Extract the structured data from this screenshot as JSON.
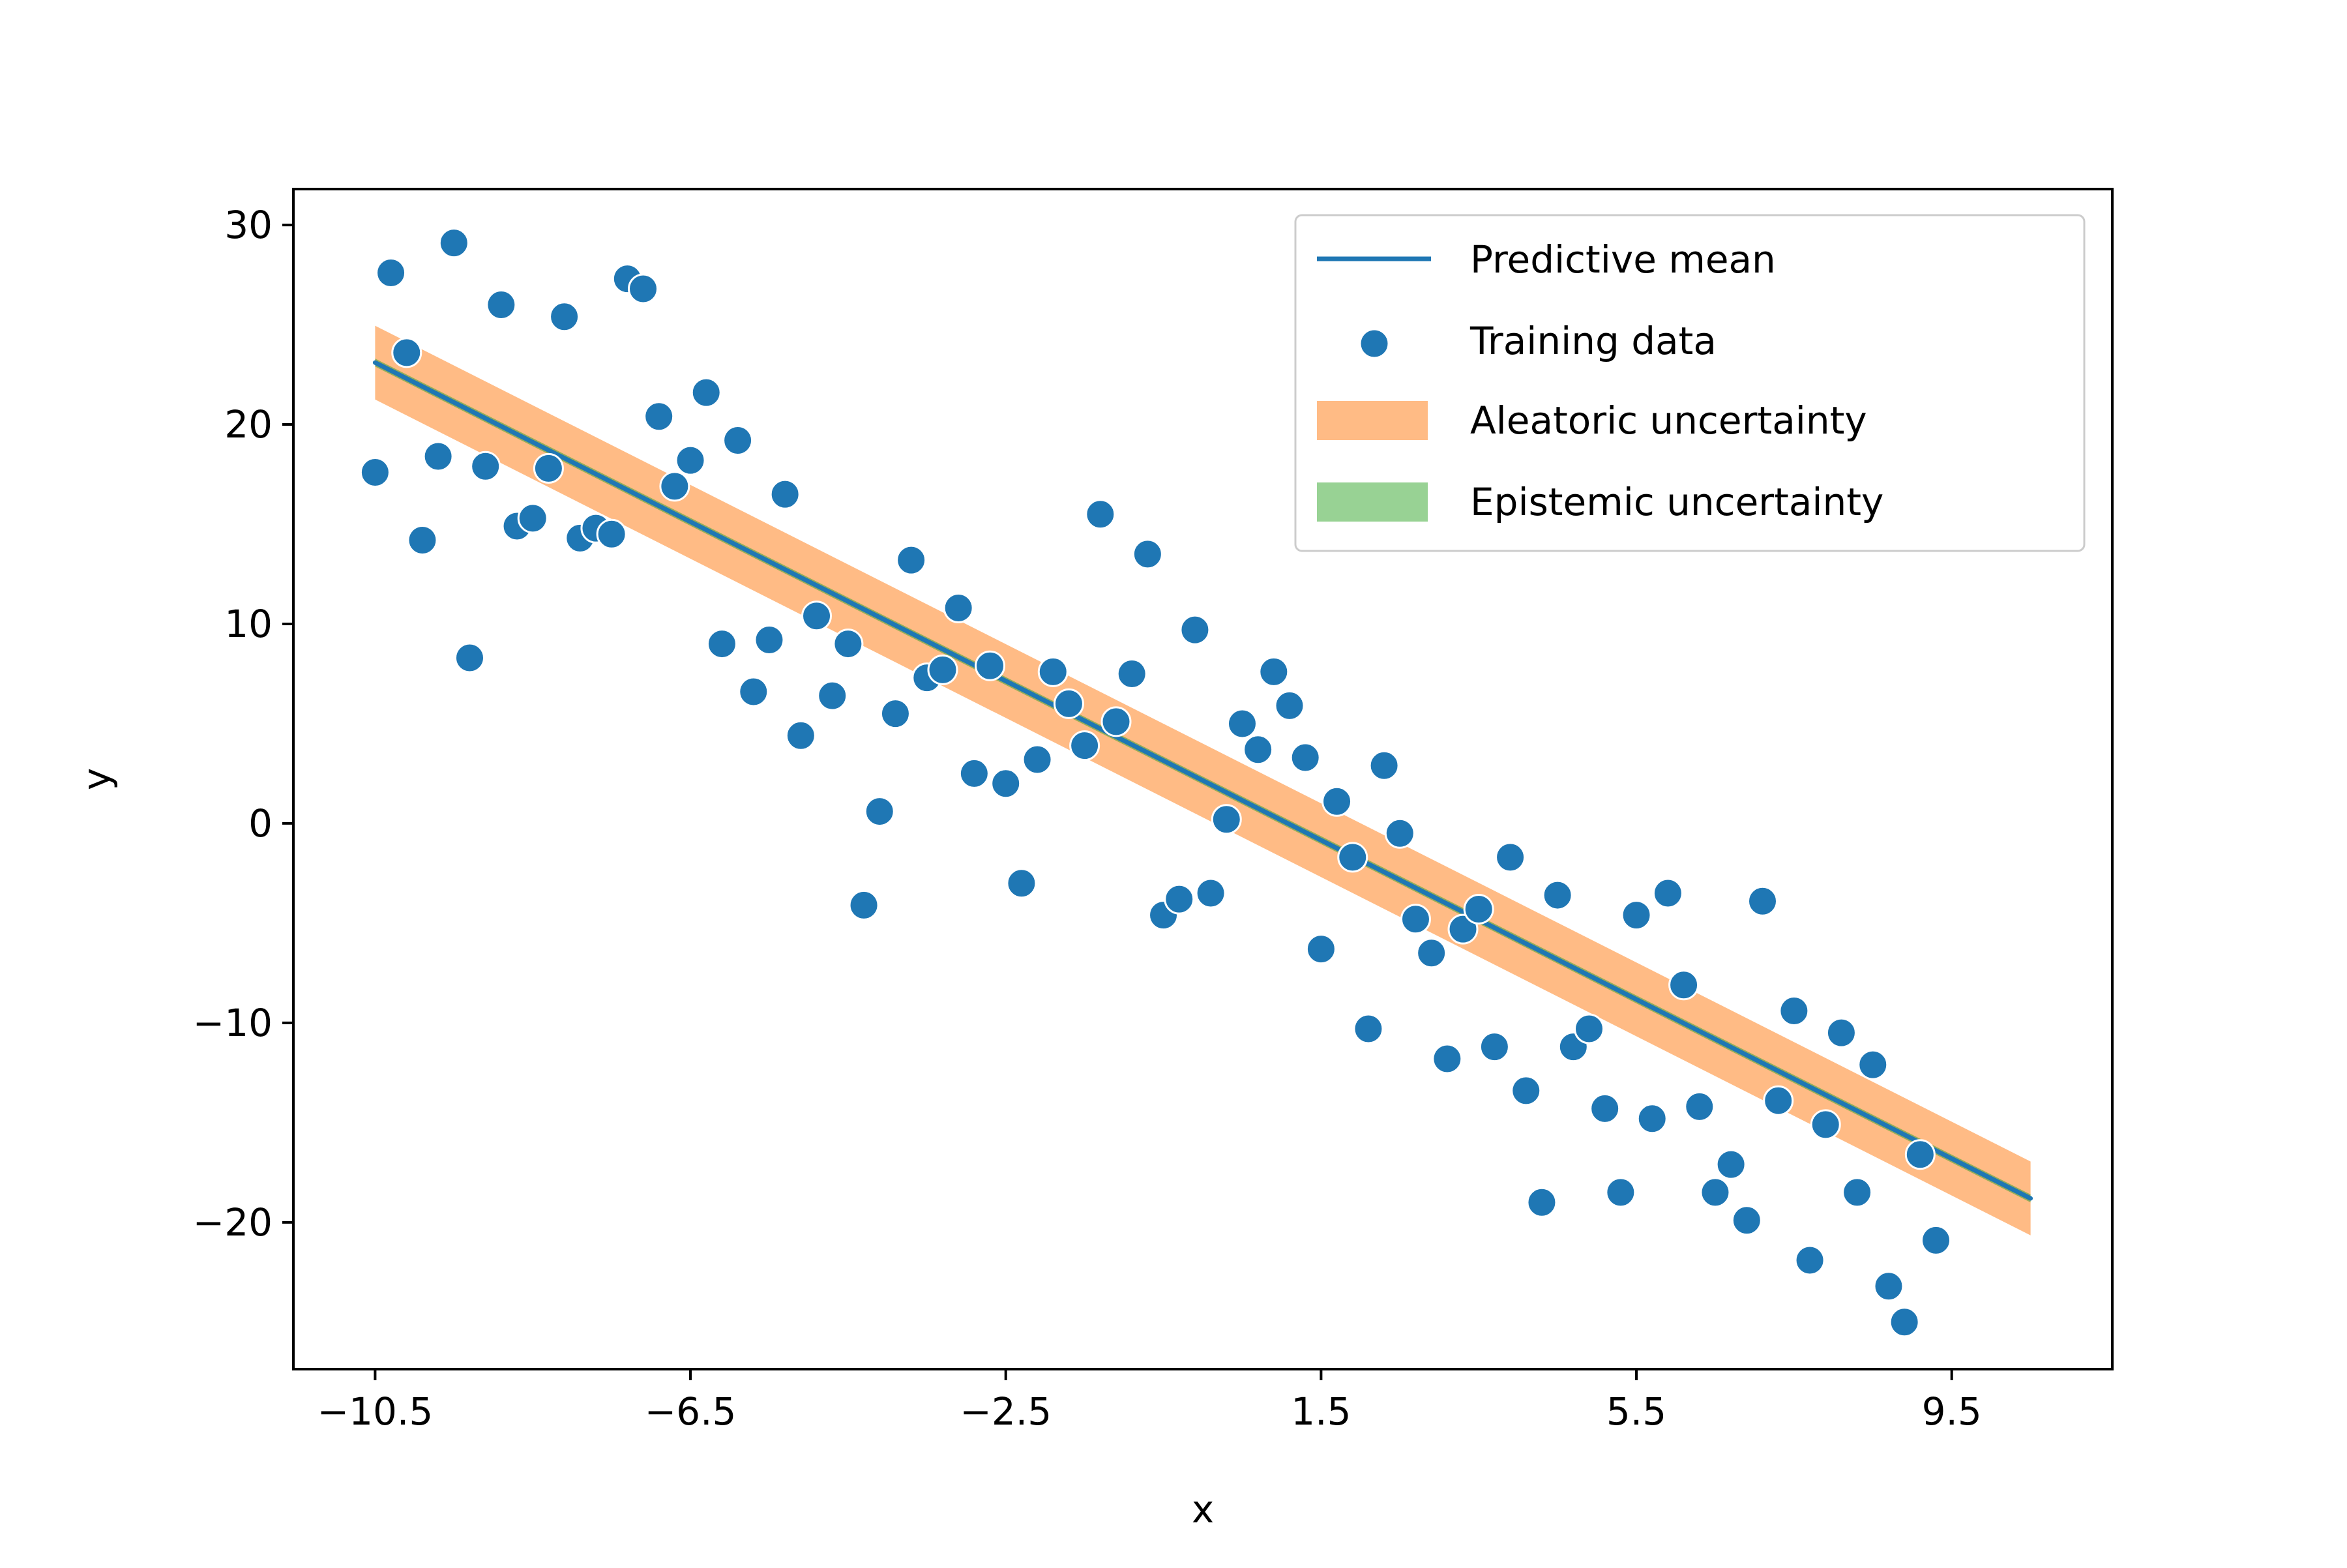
{
  "chart_data": {
    "type": "scatter",
    "title": "",
    "xlabel": "x",
    "ylabel": "y",
    "xlim": [
      -11.537,
      11.537
    ],
    "ylim": [
      -27.36,
      31.8
    ],
    "x_ticks": [
      -10.5,
      -6.5,
      -2.5,
      1.5,
      5.5,
      9.5
    ],
    "x_tick_labels": [
      "−10.5",
      "−6.5",
      "−2.5",
      "1.5",
      "5.5",
      "9.5"
    ],
    "y_ticks": [
      -20,
      -10,
      0,
      10,
      20,
      30
    ],
    "y_tick_labels": [
      "−20",
      "−10",
      "0",
      "10",
      "20",
      "30"
    ],
    "grid": false,
    "legend_position": "top-right",
    "series": [
      {
        "name": "Predictive mean",
        "kind": "line",
        "color": "#1f77b4",
        "x": [
          -10.5,
          10.5
        ],
        "y": [
          23.1,
          -18.8
        ]
      },
      {
        "name": "Training data",
        "kind": "scatter",
        "color": "#1f77b4",
        "points": [
          [
            -10.5,
            17.6
          ],
          [
            -10.3,
            27.6
          ],
          [
            -10.1,
            23.6
          ],
          [
            -9.9,
            14.2
          ],
          [
            -9.7,
            18.4
          ],
          [
            -9.5,
            29.1
          ],
          [
            -9.3,
            8.3
          ],
          [
            -9.1,
            17.9
          ],
          [
            -8.9,
            26.0
          ],
          [
            -8.7,
            14.9
          ],
          [
            -8.5,
            15.3
          ],
          [
            -8.3,
            17.8
          ],
          [
            -8.1,
            25.4
          ],
          [
            -7.9,
            14.3
          ],
          [
            -7.7,
            14.8
          ],
          [
            -7.5,
            14.5
          ],
          [
            -7.3,
            27.3
          ],
          [
            -7.1,
            26.8
          ],
          [
            -6.9,
            20.4
          ],
          [
            -6.7,
            16.9
          ],
          [
            -6.5,
            18.2
          ],
          [
            -6.3,
            21.6
          ],
          [
            -6.1,
            9.0
          ],
          [
            -5.9,
            19.2
          ],
          [
            -5.7,
            6.6
          ],
          [
            -5.5,
            9.2
          ],
          [
            -5.3,
            16.5
          ],
          [
            -5.1,
            4.4
          ],
          [
            -4.9,
            10.4
          ],
          [
            -4.7,
            6.4
          ],
          [
            -4.5,
            9.0
          ],
          [
            -4.3,
            -4.1
          ],
          [
            -4.1,
            0.6
          ],
          [
            -3.9,
            5.5
          ],
          [
            -3.7,
            13.2
          ],
          [
            -3.5,
            7.3
          ],
          [
            -3.3,
            7.7
          ],
          [
            -3.1,
            10.8
          ],
          [
            -2.9,
            2.5
          ],
          [
            -2.7,
            7.9
          ],
          [
            -2.5,
            2.0
          ],
          [
            -2.3,
            -3.0
          ],
          [
            -2.1,
            3.2
          ],
          [
            -1.9,
            7.6
          ],
          [
            -1.7,
            6.0
          ],
          [
            -1.5,
            3.9
          ],
          [
            -1.3,
            15.5
          ],
          [
            -1.1,
            5.1
          ],
          [
            -0.9,
            7.5
          ],
          [
            -0.7,
            13.5
          ],
          [
            -0.5,
            -4.6
          ],
          [
            -0.3,
            -3.8
          ],
          [
            -0.1,
            9.7
          ],
          [
            0.1,
            -3.5
          ],
          [
            0.3,
            0.2
          ],
          [
            0.5,
            5.0
          ],
          [
            0.7,
            3.7
          ],
          [
            0.9,
            7.6
          ],
          [
            1.1,
            5.9
          ],
          [
            1.3,
            3.3
          ],
          [
            1.5,
            -6.3
          ],
          [
            1.7,
            1.1
          ],
          [
            1.9,
            -1.7
          ],
          [
            2.1,
            -10.3
          ],
          [
            2.3,
            2.9
          ],
          [
            2.5,
            -0.5
          ],
          [
            2.7,
            -4.8
          ],
          [
            2.9,
            -6.5
          ],
          [
            3.1,
            -11.8
          ],
          [
            3.3,
            -5.3
          ],
          [
            3.5,
            -4.3
          ],
          [
            3.7,
            -11.2
          ],
          [
            3.9,
            -1.7
          ],
          [
            4.1,
            -13.4
          ],
          [
            4.3,
            -19.0
          ],
          [
            4.5,
            -3.6
          ],
          [
            4.7,
            -11.2
          ],
          [
            4.9,
            -10.3
          ],
          [
            5.1,
            -14.3
          ],
          [
            5.3,
            -18.5
          ],
          [
            5.5,
            -4.6
          ],
          [
            5.7,
            -14.8
          ],
          [
            5.9,
            -3.5
          ],
          [
            6.1,
            -8.1
          ],
          [
            6.3,
            -14.2
          ],
          [
            6.5,
            -18.5
          ],
          [
            6.7,
            -17.1
          ],
          [
            6.9,
            -19.9
          ],
          [
            7.1,
            -3.9
          ],
          [
            7.3,
            -13.9
          ],
          [
            7.5,
            -9.4
          ],
          [
            7.7,
            -21.9
          ],
          [
            7.9,
            -15.1
          ],
          [
            8.1,
            -10.5
          ],
          [
            8.3,
            -18.5
          ],
          [
            8.5,
            -12.1
          ],
          [
            8.7,
            -23.2
          ],
          [
            8.9,
            -25.0
          ],
          [
            9.1,
            -16.6
          ],
          [
            9.3,
            -20.9
          ]
        ]
      },
      {
        "name": "Aleatoric uncertainty",
        "kind": "band",
        "color": "#ffbb85",
        "x": [
          -10.5,
          10.5
        ],
        "half_width": 1.85
      },
      {
        "name": "Epistemic uncertainty",
        "kind": "band",
        "color": "#2ca02c",
        "x": [
          -10.5,
          10.5
        ],
        "half_width": 0.2
      }
    ]
  }
}
